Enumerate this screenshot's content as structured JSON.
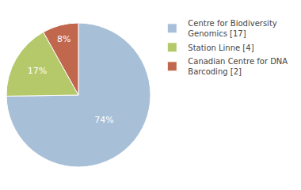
{
  "chart_data": {
    "type": "pie",
    "categories": [
      "Centre for Biodiversity\nGenomics [17]",
      "Station Linne [4]",
      "Canadian Centre for DNA\nBarcoding [2]"
    ],
    "values": [
      74,
      17,
      8
    ],
    "value_labels": [
      "74%",
      "17%",
      "8%"
    ],
    "colors": [
      "#a8bfd8",
      "#b5c96a",
      "#c0674e"
    ],
    "data_labels": true,
    "legend": "right"
  }
}
